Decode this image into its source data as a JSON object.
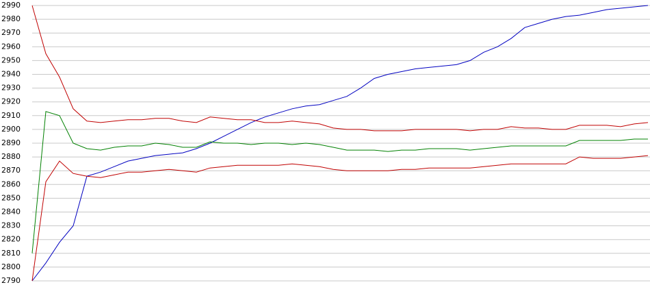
{
  "chart_data": {
    "type": "line",
    "ylim": [
      2790,
      2990
    ],
    "yticks": [
      2790,
      2800,
      2810,
      2820,
      2830,
      2840,
      2850,
      2860,
      2870,
      2880,
      2890,
      2900,
      2910,
      2920,
      2930,
      2940,
      2950,
      2960,
      2970,
      2980,
      2990
    ],
    "grid": true,
    "series": [
      {
        "color": "#0000c0",
        "values": [
          2790,
          2803,
          2818,
          2830,
          2866,
          2869,
          2873,
          2877,
          2879,
          2881,
          2882,
          2883,
          2886,
          2890,
          2895,
          2900,
          2905,
          2909,
          2912,
          2915,
          2917,
          2918,
          2921,
          2924,
          2930,
          2937,
          2940,
          2942,
          2944,
          2945,
          2946,
          2947,
          2950,
          2956,
          2960,
          2966,
          2974,
          2977,
          2980,
          2982,
          2983,
          2985,
          2987,
          2988,
          2989,
          2990
        ]
      },
      {
        "color": "#008000",
        "values": [
          2810,
          2913,
          2910,
          2890,
          2886,
          2885,
          2887,
          2888,
          2888,
          2890,
          2889,
          2887,
          2887,
          2891,
          2890,
          2890,
          2889,
          2890,
          2890,
          2889,
          2890,
          2889,
          2887,
          2885,
          2885,
          2885,
          2884,
          2885,
          2885,
          2886,
          2886,
          2886,
          2885,
          2886,
          2887,
          2888,
          2888,
          2888,
          2888,
          2888,
          2892,
          2892,
          2892,
          2892,
          2893,
          2893
        ]
      },
      {
        "color": "#c00000",
        "values": [
          2990,
          2955,
          2938,
          2915,
          2906,
          2905,
          2906,
          2907,
          2907,
          2908,
          2908,
          2906,
          2905,
          2909,
          2908,
          2907,
          2907,
          2905,
          2905,
          2906,
          2905,
          2904,
          2901,
          2900,
          2900,
          2899,
          2899,
          2899,
          2900,
          2900,
          2900,
          2900,
          2899,
          2900,
          2900,
          2902,
          2901,
          2901,
          2900,
          2900,
          2903,
          2903,
          2903,
          2902,
          2904,
          2905
        ]
      },
      {
        "color": "#c00000",
        "values": [
          2790,
          2862,
          2877,
          2868,
          2866,
          2865,
          2867,
          2869,
          2869,
          2870,
          2871,
          2870,
          2869,
          2872,
          2873,
          2874,
          2874,
          2874,
          2874,
          2875,
          2874,
          2873,
          2871,
          2870,
          2870,
          2870,
          2870,
          2871,
          2871,
          2872,
          2872,
          2872,
          2872,
          2873,
          2874,
          2875,
          2875,
          2875,
          2875,
          2875,
          2880,
          2879,
          2879,
          2879,
          2880,
          2881
        ]
      }
    ]
  }
}
